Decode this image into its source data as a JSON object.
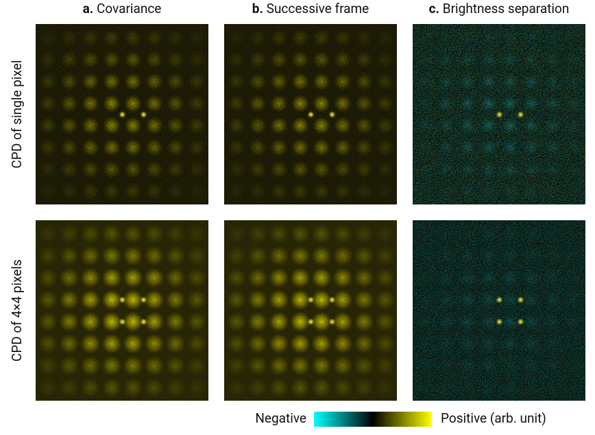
{
  "columns": [
    {
      "letter": "a.",
      "title": "Covariance"
    },
    {
      "letter": "b.",
      "title": "Successive frame"
    },
    {
      "letter": "c.",
      "title": "Brightness separation"
    }
  ],
  "rows": [
    "CPD of single pixel",
    "CPD of 4×4 pixels"
  ],
  "colorbar": {
    "negative": "Negative",
    "positive": "Positive (arb. unit)"
  }
}
